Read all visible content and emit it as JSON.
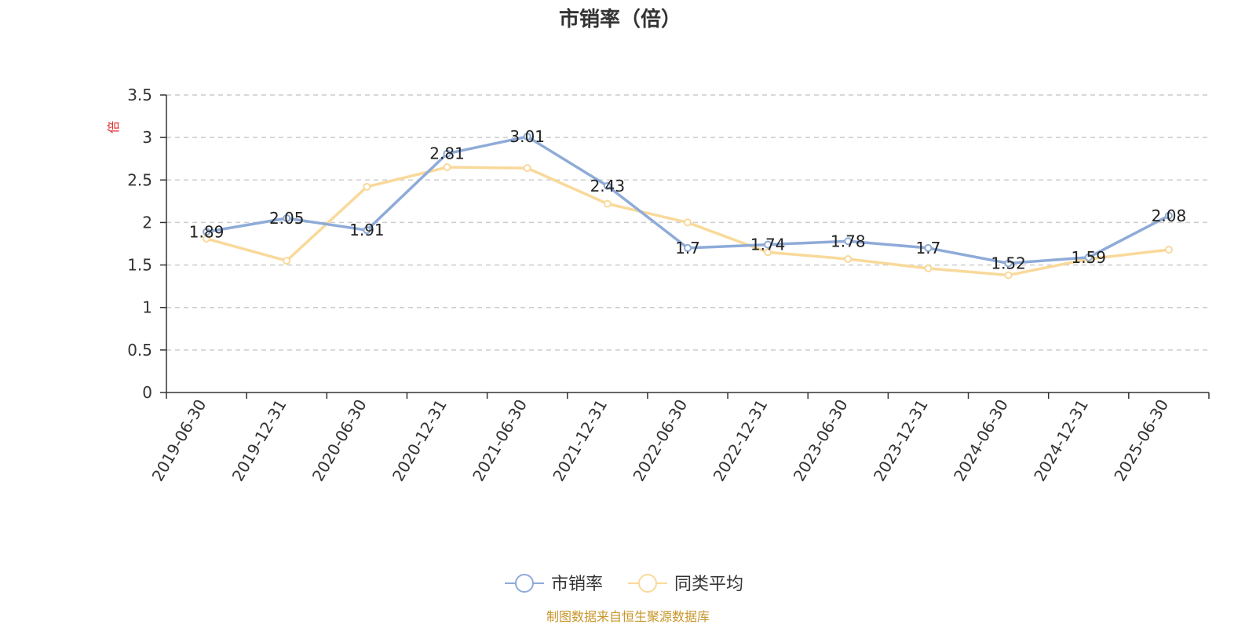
{
  "chart_data": {
    "type": "line",
    "title": "市销率（倍）",
    "ylabel": "倍",
    "ylim": [
      0,
      3.5
    ],
    "yticks": [
      "0",
      "0.5",
      "1",
      "1.5",
      "2",
      "2.5",
      "3",
      "3.5"
    ],
    "categories": [
      "2019-06-30",
      "2019-12-31",
      "2020-06-30",
      "2020-12-31",
      "2021-06-30",
      "2021-12-31",
      "2022-06-30",
      "2022-12-31",
      "2023-06-30",
      "2023-12-31",
      "2024-06-30",
      "2024-12-31",
      "2025-06-30"
    ],
    "series": [
      {
        "name": "市销率",
        "color": "#8eabd8",
        "values": [
          1.89,
          2.05,
          1.91,
          2.81,
          3.01,
          2.43,
          1.7,
          1.74,
          1.78,
          1.7,
          1.52,
          1.59,
          2.08
        ],
        "labels": [
          "1.89",
          "2.05",
          "1.91",
          "2.81",
          "3.01",
          "2.43",
          "1.7",
          "1.74",
          "1.78",
          "1.7",
          "1.52",
          "1.59",
          "2.08"
        ]
      },
      {
        "name": "同类平均",
        "color": "#f9d99a",
        "values": [
          1.81,
          1.55,
          2.42,
          2.65,
          2.64,
          2.22,
          2.0,
          1.65,
          1.57,
          1.46,
          1.38,
          1.57,
          1.68
        ]
      }
    ],
    "grid": true,
    "legend_position": "bottom-center"
  },
  "source_note": "制图数据来自恒生聚源数据库"
}
